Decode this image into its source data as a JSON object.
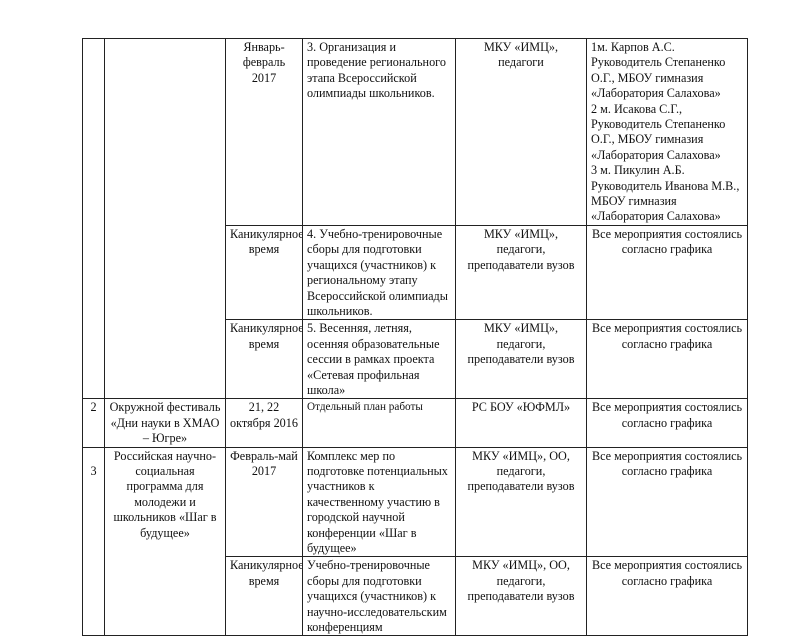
{
  "rows": [
    {
      "num": "",
      "name": "",
      "subs": [
        {
          "date": "Январь-февраль 2017",
          "activity": "3. Организация и проведение регионального этапа Всероссийской олимпиады школьников.",
          "responsible": "МКУ «ИМЦ», педагоги",
          "result": "1м. Карпов А.С. Руководитель Степаненко О.Г., МБОУ гимназия «Лаборатория Салахова»\n2 м. Исакова С.Г., Руководитель Степаненко О.Г., МБОУ гимназия «Лаборатория Салахова»\n3 м. Пикулин А.Б. Руководитель Иванова М.В., МБОУ гимназия «Лаборатория Салахова»"
        },
        {
          "date": "Каникулярное время",
          "activity": "4.  Учебно-тренировочные сборы для подготовки учащихся (участников) к региональному этапу Всероссийской олимпиады школьников.",
          "responsible": "МКУ «ИМЦ», педагоги, преподаватели вузов",
          "result": "Все мероприятия состоялись согласно графика"
        },
        {
          "date": "Каникулярное время",
          "activity": "5.  Весенняя, летняя, осенняя образовательные сессии в рамках проекта «Сетевая профильная школа»",
          "responsible": "МКУ «ИМЦ», педагоги, преподаватели вузов",
          "result": "Все мероприятия состоялись согласно графика"
        }
      ]
    },
    {
      "num": "2",
      "name": "Окружной фестиваль «Дни науки в ХМАО – Югре»",
      "subs": [
        {
          "date": "21, 22 октября 2016",
          "activity": "Отдельный план работы",
          "responsible": "РС БОУ «ЮФМЛ»",
          "result": "Все мероприятия состоялись согласно графика"
        }
      ]
    },
    {
      "num": "3",
      "name": "Российская научно-социальная программа для молодежи и школьников «Шаг в будущее»",
      "subs": [
        {
          "date": "Февраль-май 2017",
          "activity": "Комплекс мер по подготовке потенциальных участников к качественному участию в городской научной конференции «Шаг в будущее»",
          "responsible": "МКУ «ИМЦ», ОО, педагоги, преподаватели вузов",
          "result": "Все мероприятия состоялись согласно графика"
        },
        {
          "date": "Каникулярное время",
          "activity": "Учебно-тренировочные сборы для подготовки учащихся (участников) к научно-исследовательским конференциям",
          "responsible": "МКУ «ИМЦ», ОО, педагоги, преподаватели вузов",
          "result": "Все мероприятия состоялись согласно графика"
        }
      ]
    }
  ]
}
